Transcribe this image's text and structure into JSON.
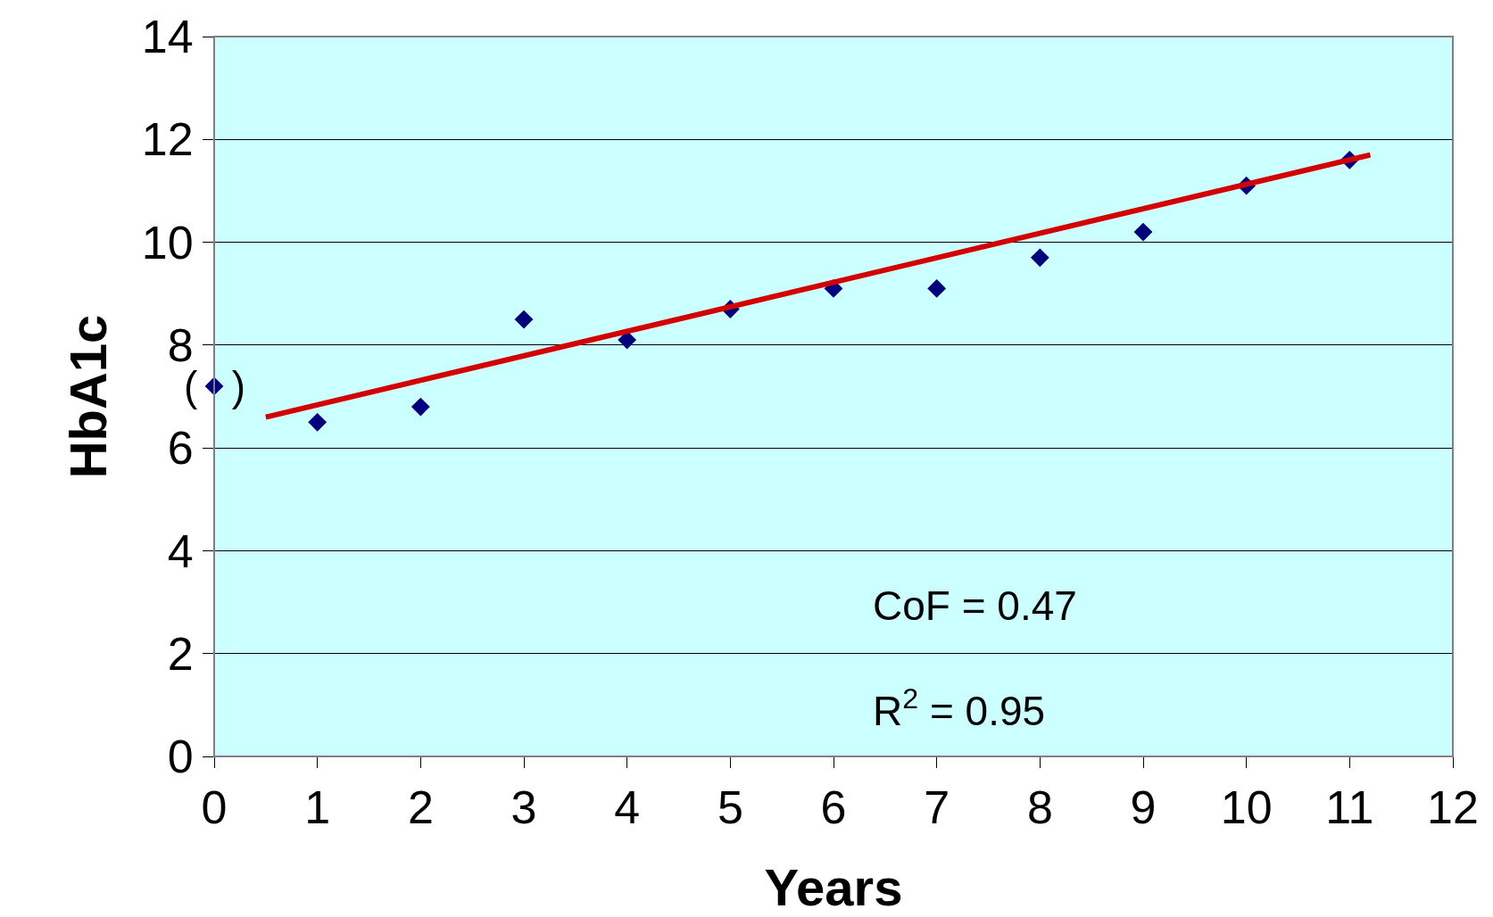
{
  "chart_data": {
    "type": "scatter",
    "xlabel": "Years",
    "ylabel": "HbA1c",
    "series": [
      {
        "color": "#00007f",
        "marker": "diamond",
        "x": [
          0,
          1,
          2,
          3,
          4,
          5,
          6,
          7,
          8,
          9,
          10,
          11
        ],
        "values": [
          7.2,
          6.5,
          6.8,
          8.5,
          8.1,
          8.7,
          9.1,
          9.1,
          9.7,
          10.2,
          11.1,
          11.6
        ]
      },
      {
        "type": "line",
        "color": "#d40000",
        "marker": "none",
        "line_style": "solid",
        "x": [
          0.5,
          11.2
        ],
        "values": [
          6.6,
          11.7
        ]
      }
    ],
    "annotations": [
      {
        "text": "(   )",
        "x": 0,
        "y": 7.2
      },
      "CoF = 0.47",
      "R$^{2}$ = 0.95"
    ],
    "xlim": [
      0,
      12
    ],
    "xticks": [
      0,
      1,
      2,
      3,
      4,
      5,
      6,
      7,
      8,
      9,
      10,
      11,
      12
    ],
    "ylim": [
      0,
      14
    ],
    "yticks": [
      0,
      2,
      4,
      6,
      8,
      10,
      12,
      14
    ],
    "grid": "y"
  }
}
